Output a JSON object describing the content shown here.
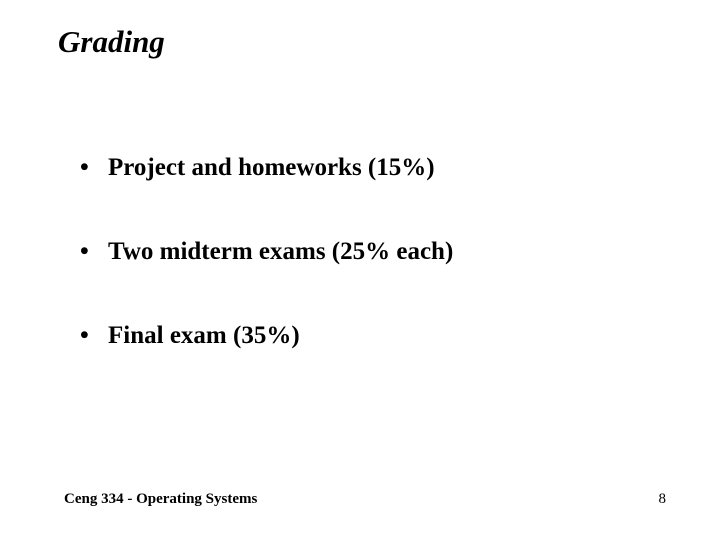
{
  "slide": {
    "title": "Grading",
    "title_fontsize": 31,
    "title_fontweight": "bold",
    "title_fontstyle": "italic",
    "title_color": "#000000",
    "background_color": "#ffffff",
    "font_family": "Times New Roman",
    "bullets": [
      {
        "text": "Project and homeworks (15%)"
      },
      {
        "text": "Two midterm exams (25% each)"
      },
      {
        "text": "Final exam (35%)"
      }
    ],
    "bullet_fontsize": 25,
    "bullet_fontweight": "bold",
    "bullet_color": "#000000",
    "bullet_spacing": 56,
    "footer": {
      "left_text": "Ceng 334 - Operating Systems",
      "right_text": "8",
      "fontsize": 15,
      "color": "#000000"
    }
  }
}
